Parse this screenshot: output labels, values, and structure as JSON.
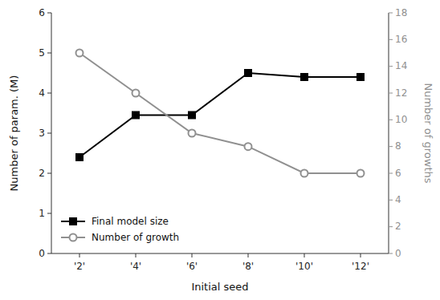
{
  "chart_data": {
    "type": "line",
    "x_label": "Initial seed",
    "y_label": "Number of param. (M)",
    "y2_label": "Number of growths",
    "categories": [
      "'2'",
      "'4'",
      "'6'",
      "'8'",
      "'10'",
      "'12'"
    ],
    "series": [
      {
        "name": "Final model size",
        "color": "#000000",
        "marker": "square",
        "values": [
          2.4,
          3.45,
          3.45,
          4.5,
          4.4,
          4.4
        ]
      },
      {
        "name": "Number of growth",
        "color": "#909090",
        "marker": "circle",
        "axis": "y2",
        "values": [
          15,
          12,
          9,
          8,
          6,
          6
        ]
      }
    ],
    "ylim": [
      0,
      6
    ],
    "yticks": [
      0,
      1,
      2,
      3,
      4,
      5,
      6
    ],
    "y2lim": [
      0,
      18
    ],
    "y2ticks": [
      0,
      2,
      4,
      6,
      8,
      10,
      12,
      14,
      16,
      18
    ],
    "legend": "lower left"
  }
}
